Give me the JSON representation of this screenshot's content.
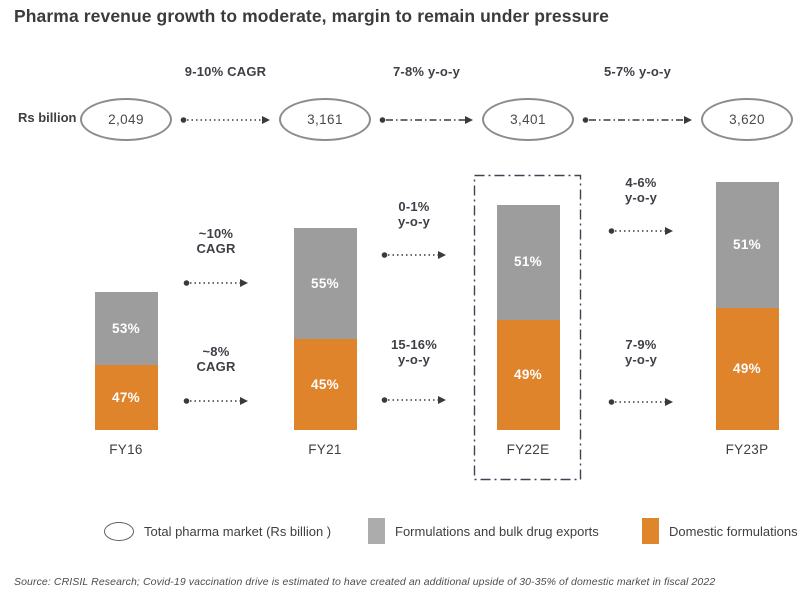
{
  "title": "Pharma revenue growth to moderate, margin to remain under pressure",
  "unit_label": "Rs billion",
  "source": "Source: CRISIL Research; Covid-19 vaccination drive is estimated to have created an additional upside of 30-35% of domestic market in fiscal 2022",
  "colors": {
    "domestic": "#e0842b",
    "exports": "#9d9d9d",
    "legend_exports": "#acacac",
    "legend_domestic": "#e0862a",
    "text_dark": "#3f3f3f",
    "annotation_text": "#3e3e46",
    "arrow": "#3a3a3a",
    "oval_stroke": "#8d8d8d",
    "highlight_box": "#3a4654"
  },
  "chart_data": {
    "type": "bar",
    "stacked": true,
    "unit": "Rs billion",
    "title": "Pharma revenue growth to moderate, margin to remain under pressure",
    "categories": [
      "FY16",
      "FY21",
      "FY22E",
      "FY23P"
    ],
    "totals": [
      2049,
      3161,
      3401,
      3620
    ],
    "series": [
      {
        "name": "Domestic formulations",
        "color": "#e0842b",
        "values_pct": [
          47,
          45,
          49,
          49
        ]
      },
      {
        "name": "Formulations and bulk drug exports",
        "color": "#9d9d9d",
        "values_pct": [
          53,
          55,
          51,
          51
        ]
      }
    ],
    "total_growth_labels": [
      "9-10% CAGR",
      "7-8% y-o-y",
      "5-7% y-o-y"
    ],
    "exports_growth_labels": [
      [
        "~10%",
        "CAGR"
      ],
      [
        "0-1%",
        "y-o-y"
      ],
      [
        "4-6%",
        "y-o-y"
      ]
    ],
    "domestic_growth_labels": [
      [
        "~8%",
        "CAGR"
      ],
      [
        "15-16%",
        "y-o-y"
      ],
      [
        "7-9%",
        "y-o-y"
      ]
    ],
    "highlighted_category": "FY22E",
    "legend_position": "bottom",
    "grid": false
  },
  "legend": [
    {
      "label": "Total pharma market (Rs billion )",
      "swatch": "oval"
    },
    {
      "label": "Formulations and bulk drug exports",
      "swatch": "square",
      "color": "#acacac"
    },
    {
      "label": "Domestic formulations",
      "swatch": "square",
      "color": "#e0862a"
    }
  ]
}
